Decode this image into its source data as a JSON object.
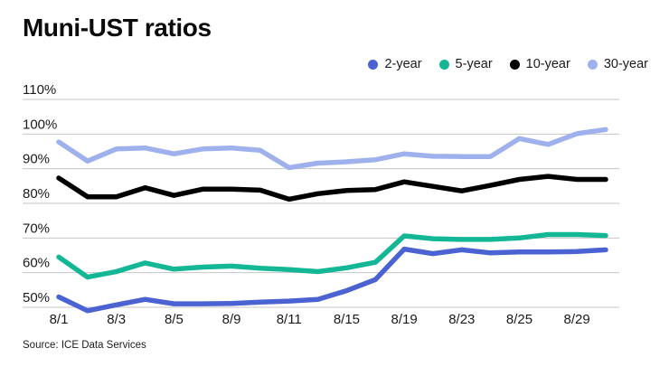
{
  "chart": {
    "title": "Muni-UST ratios",
    "source": "Source: ICE Data Services",
    "colors": {
      "grid": "#c4c4c4",
      "tick_text": "#1a1a1a",
      "title_text": "#0b0b0b",
      "two_year": "#4a62d2",
      "five_year": "#13b795",
      "ten_year": "#000000",
      "thirty_year": "#9fb1ec"
    }
  },
  "chart_data": {
    "type": "line",
    "title": "Muni-UST ratios",
    "xlabel": "",
    "ylabel": "",
    "y_unit": "%",
    "grid": "horizontal",
    "legend_position": "top-right",
    "n_points": 20,
    "x_tick_labels": [
      "8/1",
      "8/3",
      "8/5",
      "8/9",
      "8/11",
      "8/15",
      "8/19",
      "8/23",
      "8/25",
      "8/29"
    ],
    "x_tick_indices": [
      0,
      2,
      4,
      6,
      8,
      10,
      12,
      14,
      16,
      18
    ],
    "y_ticks": [
      110,
      100,
      90,
      80,
      70,
      60,
      50
    ],
    "y_tick_labels": [
      "110%",
      "100%",
      "90%",
      "80%",
      "70%",
      "60%",
      "50%"
    ],
    "ylim": [
      46,
      113
    ],
    "series": [
      {
        "name": "2-year",
        "color": "#4a62d2",
        "values": [
          53,
          49,
          50.7,
          52.3,
          51,
          51,
          51.1,
          51.5,
          51.8,
          52.3,
          54.8,
          58,
          66.8,
          65.5,
          66.6,
          65.7,
          66,
          66,
          66.1,
          66.6
        ]
      },
      {
        "name": "5-year",
        "color": "#13b795",
        "values": [
          64.5,
          58.7,
          60.3,
          62.8,
          61,
          61.6,
          61.9,
          61.3,
          60.9,
          60.3,
          61.4,
          63,
          70.6,
          69.8,
          69.6,
          69.6,
          70,
          71,
          71,
          70.7
        ]
      },
      {
        "name": "10-year",
        "color": "#000000",
        "values": [
          87.3,
          81.9,
          81.9,
          84.5,
          82.3,
          84.1,
          84.1,
          83.8,
          81.2,
          82.8,
          83.7,
          84,
          86.2,
          84.9,
          83.6,
          85.2,
          86.9,
          87.8,
          86.9,
          86.9
        ]
      },
      {
        "name": "30-year",
        "color": "#9fb1ec",
        "values": [
          97.7,
          92.2,
          95.7,
          96,
          94.3,
          95.7,
          96,
          95.3,
          90.3,
          91.6,
          92,
          92.6,
          94.3,
          93.6,
          93.5,
          93.5,
          98.7,
          97,
          100.1,
          101.3
        ]
      }
    ]
  }
}
